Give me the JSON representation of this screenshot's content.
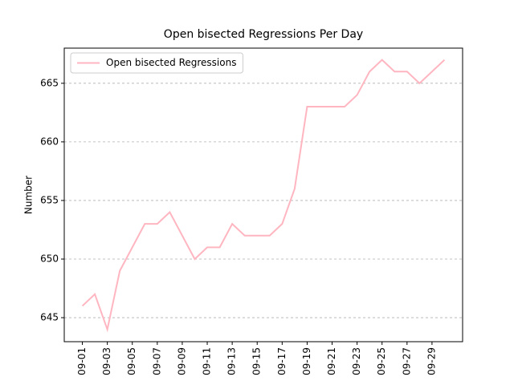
{
  "chart_data": {
    "type": "line",
    "title": "Open bisected Regressions Per Day",
    "ylabel": "Number",
    "categories": [
      "09-01",
      null,
      "09-03",
      null,
      "09-05",
      null,
      "09-07",
      null,
      "09-09",
      null,
      "09-11",
      null,
      "09-13",
      null,
      "09-15",
      null,
      "09-17",
      null,
      "09-19",
      null,
      "09-21",
      null,
      "09-23",
      null,
      "09-25",
      null,
      "09-27",
      null,
      "09-29",
      null
    ],
    "series": [
      {
        "name": "Open bisected Regressions",
        "color": "#ffb6c1",
        "values": [
          646,
          647,
          644,
          649,
          651,
          653,
          653,
          654,
          652,
          650,
          651,
          651,
          653,
          652,
          652,
          652,
          653,
          656,
          663,
          663,
          663,
          663,
          664,
          666,
          667,
          666,
          666,
          665,
          666,
          667
        ]
      }
    ],
    "ylim": [
      642.95,
      668.0
    ],
    "yticks": [
      645,
      650,
      655,
      660,
      665
    ],
    "grid": true,
    "legend": "upper left"
  }
}
